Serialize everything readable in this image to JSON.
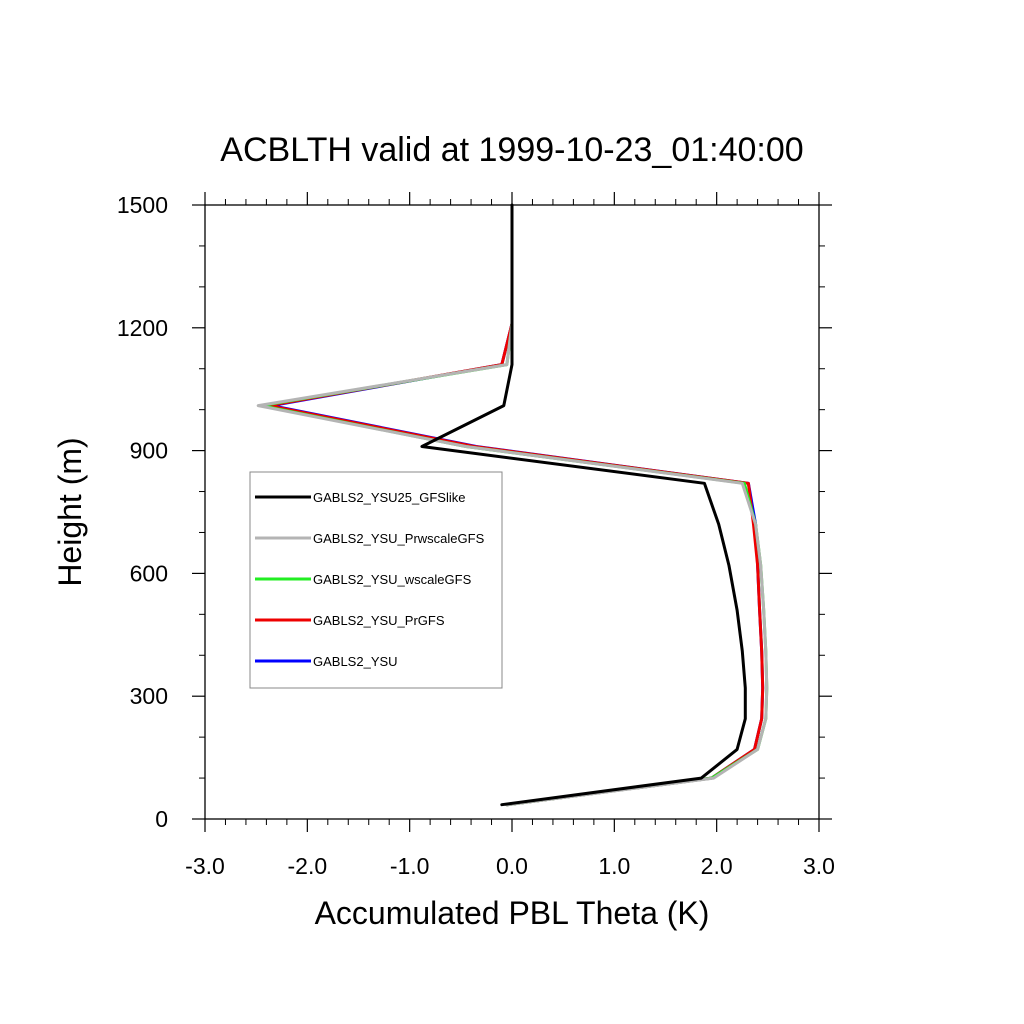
{
  "chart_data": {
    "type": "line",
    "title": "ACBLTH valid at 1999-10-23_01:40:00",
    "xlabel": "Accumulated PBL Theta (K)",
    "ylabel": "Height (m)",
    "xlim": [
      -3.0,
      3.0
    ],
    "ylim": [
      0,
      1500
    ],
    "xticks": [
      -3.0,
      -2.0,
      -1.0,
      0.0,
      1.0,
      2.0,
      3.0
    ],
    "xtick_labels": [
      "-3.0",
      "-2.0",
      "-1.0",
      "0.0",
      "1.0",
      "2.0",
      "3.0"
    ],
    "yticks": [
      0,
      300,
      600,
      900,
      1200,
      1500
    ],
    "ytick_labels": [
      "0",
      "300",
      "600",
      "900",
      "1200",
      "1500"
    ],
    "grid": false,
    "legend_position": "left-middle",
    "series": [
      {
        "name": "GABLS2_YSU",
        "color": "#0000ff",
        "y": [
          35,
          100,
          170,
          245,
          320,
          410,
          510,
          620,
          720,
          820,
          910,
          1010,
          1110,
          1210
        ],
        "x": [
          -0.05,
          1.95,
          2.37,
          2.44,
          2.45,
          2.44,
          2.42,
          2.4,
          2.38,
          2.31,
          -0.35,
          -2.35,
          -0.1,
          0.0
        ]
      },
      {
        "name": "GABLS2_YSU_PrGFS",
        "color": "#ee0000",
        "y": [
          35,
          100,
          170,
          245,
          320,
          410,
          510,
          620,
          720,
          820,
          910,
          1010,
          1110,
          1210
        ],
        "x": [
          -0.05,
          1.95,
          2.37,
          2.44,
          2.45,
          2.44,
          2.42,
          2.4,
          2.36,
          2.31,
          -0.37,
          -2.38,
          -0.1,
          0.0
        ]
      },
      {
        "name": "GABLS2_YSU_wscaleGFS",
        "color": "#22ee22",
        "y": [
          35,
          100,
          170,
          245,
          320,
          410,
          510,
          620,
          720,
          820,
          910,
          1010,
          1110,
          1210
        ],
        "x": [
          -0.05,
          1.95,
          2.4,
          2.48,
          2.49,
          2.48,
          2.46,
          2.43,
          2.38,
          2.27,
          -0.45,
          -2.45,
          -0.05,
          0.0
        ]
      },
      {
        "name": "GABLS2_YSU_PrwscaleGFS",
        "color": "#b4b4b4",
        "y": [
          35,
          100,
          170,
          245,
          320,
          410,
          510,
          620,
          720,
          820,
          910,
          1010,
          1110,
          1210
        ],
        "x": [
          -0.05,
          1.97,
          2.4,
          2.48,
          2.49,
          2.48,
          2.46,
          2.43,
          2.38,
          2.25,
          -0.45,
          -2.48,
          -0.05,
          0.0
        ]
      },
      {
        "name": "GABLS2_YSU25_GFSlike",
        "color": "#000000",
        "y": [
          35,
          100,
          170,
          245,
          320,
          410,
          510,
          620,
          720,
          820,
          910,
          1010,
          1110,
          1210,
          1500
        ],
        "x": [
          -0.1,
          1.85,
          2.2,
          2.28,
          2.28,
          2.25,
          2.2,
          2.12,
          2.02,
          1.88,
          -0.88,
          -0.08,
          0.0,
          0.0,
          0.0
        ]
      }
    ],
    "legend_order": [
      "GABLS2_YSU25_GFSlike",
      "GABLS2_YSU_PrwscaleGFS",
      "GABLS2_YSU_wscaleGFS",
      "GABLS2_YSU_PrGFS",
      "GABLS2_YSU"
    ]
  }
}
